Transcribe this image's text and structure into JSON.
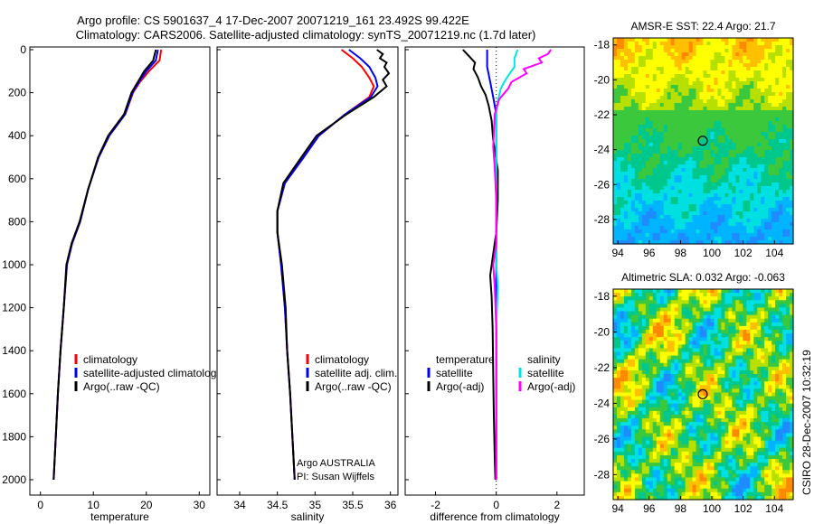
{
  "header": {
    "line1": "Argo profile: CS 5901637_4 17-Dec-2007 20071219_161 23.492S 99.422E",
    "line2": "Climatology: CARS2006. Satellite-adjusted climatology: synTS_20071219.nc (1.7d later)"
  },
  "credit": {
    "line1": "Argo AUSTRALIA",
    "line2": "PI: Susan Wijffels",
    "timestamp": "CSIRO 28-Dec-2007 10:32:19"
  },
  "colors": {
    "climatology": "#ff0000",
    "satellite": "#0000ff",
    "argo": "#000000",
    "sat_diff": "#00e5e5",
    "argo_sal_diff": "#ff00ff"
  },
  "chart_data": [
    {
      "type": "line",
      "panel": "temperature",
      "xlabel": "temperature",
      "ylabel": "",
      "xlim": [
        -2,
        32
      ],
      "ylim": [
        0,
        2050
      ],
      "y_reversed": true,
      "xticks": [
        0,
        10,
        20,
        30
      ],
      "yticks": [
        0,
        200,
        400,
        600,
        800,
        1000,
        1200,
        1400,
        1600,
        1800,
        2000
      ],
      "legend": [
        "climatology",
        "satellite-adjusted climatology",
        "Argo(..raw -QC)"
      ],
      "legend_position": "lower-middle",
      "series": [
        {
          "name": "climatology",
          "color": "#ff0000",
          "points": [
            [
              22.8,
              0
            ],
            [
              22.5,
              50
            ],
            [
              20.5,
              100
            ],
            [
              18.8,
              150
            ],
            [
              17.5,
              200
            ],
            [
              16,
              300
            ],
            [
              13,
              400
            ],
            [
              11,
              500
            ],
            [
              9,
              650
            ],
            [
              7.5,
              800
            ],
            [
              6,
              900
            ],
            [
              5,
              1000
            ],
            [
              4.4,
              1200
            ],
            [
              3.8,
              1400
            ],
            [
              3.3,
              1600
            ],
            [
              2.9,
              1800
            ],
            [
              2.5,
              2000
            ]
          ]
        },
        {
          "name": "satellite-adjusted climatology",
          "color": "#0000ff",
          "points": [
            [
              22.2,
              0
            ],
            [
              21.8,
              50
            ],
            [
              20.0,
              100
            ],
            [
              18.6,
              150
            ],
            [
              17.4,
              200
            ],
            [
              16,
              300
            ],
            [
              13,
              400
            ],
            [
              11,
              500
            ],
            [
              9,
              650
            ],
            [
              7.5,
              800
            ],
            [
              6,
              900
            ],
            [
              5,
              1000
            ],
            [
              4.4,
              1200
            ],
            [
              3.8,
              1400
            ],
            [
              3.3,
              1600
            ],
            [
              2.9,
              1800
            ],
            [
              2.5,
              2000
            ]
          ]
        },
        {
          "name": "Argo(..raw -QC)",
          "color": "#000000",
          "points": [
            [
              21.8,
              0
            ],
            [
              21.3,
              50
            ],
            [
              19.6,
              100
            ],
            [
              18.4,
              150
            ],
            [
              17.2,
              200
            ],
            [
              15.8,
              300
            ],
            [
              12.8,
              400
            ],
            [
              10.9,
              500
            ],
            [
              9,
              650
            ],
            [
              7.4,
              800
            ],
            [
              5.9,
              900
            ],
            [
              4.9,
              1000
            ],
            [
              4.4,
              1200
            ],
            [
              3.8,
              1400
            ],
            [
              3.3,
              1600
            ],
            [
              2.9,
              1800
            ],
            [
              2.5,
              2000
            ]
          ]
        }
      ]
    },
    {
      "type": "line",
      "panel": "salinity",
      "xlabel": "salinity",
      "ylabel": "",
      "xlim": [
        33.7,
        36.1
      ],
      "ylim": [
        0,
        2050
      ],
      "y_reversed": true,
      "xticks": [
        34,
        34.5,
        35,
        35.5,
        36
      ],
      "legend": [
        "climatology",
        "satellite adj. clim.",
        "Argo(..raw -QC)"
      ],
      "legend_position": "lower-right",
      "series": [
        {
          "name": "climatology",
          "color": "#ff0000",
          "points": [
            [
              35.35,
              0
            ],
            [
              35.5,
              40
            ],
            [
              35.62,
              80
            ],
            [
              35.72,
              130
            ],
            [
              35.78,
              170
            ],
            [
              35.72,
              220
            ],
            [
              35.4,
              300
            ],
            [
              35.05,
              400
            ],
            [
              34.85,
              500
            ],
            [
              34.6,
              620
            ],
            [
              34.5,
              750
            ],
            [
              34.5,
              850
            ],
            [
              34.55,
              1000
            ],
            [
              34.6,
              1200
            ],
            [
              34.63,
              1400
            ],
            [
              34.67,
              1600
            ],
            [
              34.7,
              1800
            ],
            [
              34.73,
              2000
            ]
          ]
        },
        {
          "name": "satellite adj. clim.",
          "color": "#0000ff",
          "points": [
            [
              35.45,
              0
            ],
            [
              35.6,
              40
            ],
            [
              35.72,
              80
            ],
            [
              35.8,
              130
            ],
            [
              35.83,
              170
            ],
            [
              35.74,
              220
            ],
            [
              35.4,
              300
            ],
            [
              35.05,
              400
            ],
            [
              34.85,
              500
            ],
            [
              34.6,
              620
            ],
            [
              34.5,
              750
            ],
            [
              34.5,
              850
            ],
            [
              34.55,
              1000
            ],
            [
              34.6,
              1200
            ],
            [
              34.63,
              1400
            ],
            [
              34.67,
              1600
            ],
            [
              34.7,
              1800
            ],
            [
              34.73,
              2000
            ]
          ]
        },
        {
          "name": "Argo(..raw -QC)",
          "color": "#000000",
          "points": [
            [
              35.82,
              0
            ],
            [
              35.9,
              20
            ],
            [
              35.86,
              40
            ],
            [
              35.95,
              60
            ],
            [
              35.92,
              80
            ],
            [
              35.98,
              110
            ],
            [
              35.9,
              140
            ],
            [
              35.95,
              170
            ],
            [
              35.78,
              220
            ],
            [
              35.42,
              300
            ],
            [
              35.02,
              400
            ],
            [
              34.82,
              500
            ],
            [
              34.58,
              620
            ],
            [
              34.5,
              750
            ],
            [
              34.5,
              850
            ],
            [
              34.56,
              1000
            ],
            [
              34.61,
              1200
            ],
            [
              34.63,
              1400
            ],
            [
              34.67,
              1600
            ],
            [
              34.7,
              1800
            ],
            [
              34.73,
              2000
            ]
          ]
        }
      ]
    },
    {
      "type": "line",
      "panel": "difference",
      "xlabel": "difference from climatology",
      "ylabel": "",
      "xlim": [
        -3.0,
        2.9
      ],
      "ylim": [
        0,
        2050
      ],
      "y_reversed": true,
      "xticks": [
        -2,
        0,
        2
      ],
      "zero_line": "dotted",
      "legend_groups": [
        {
          "title": "temperature",
          "entries": [
            "satellite",
            "Argo(-adj)"
          ]
        },
        {
          "title": "salinity",
          "entries": [
            "satellite",
            "Argo(-adj)"
          ]
        }
      ],
      "legend_position": "lower-middle",
      "series": [
        {
          "name": "temperature satellite",
          "color": "#0000ff",
          "points": [
            [
              -0.3,
              0
            ],
            [
              -0.3,
              80
            ],
            [
              -0.2,
              150
            ],
            [
              -0.1,
              220
            ],
            [
              0,
              300
            ],
            [
              0,
              2000
            ]
          ]
        },
        {
          "name": "temperature Argo(-adj)",
          "color": "#000000",
          "points": [
            [
              -1.1,
              0
            ],
            [
              -0.9,
              30
            ],
            [
              -0.7,
              60
            ],
            [
              -0.75,
              90
            ],
            [
              -0.6,
              130
            ],
            [
              -0.5,
              170
            ],
            [
              -0.35,
              210
            ],
            [
              -0.25,
              260
            ],
            [
              -0.15,
              330
            ],
            [
              -0.1,
              420
            ],
            [
              0.05,
              560
            ],
            [
              0.05,
              700
            ],
            [
              0.0,
              850
            ],
            [
              -0.1,
              950
            ],
            [
              -0.2,
              1050
            ],
            [
              -0.15,
              1150
            ],
            [
              -0.12,
              1300
            ],
            [
              -0.1,
              1500
            ],
            [
              -0.08,
              1700
            ],
            [
              -0.05,
              1900
            ],
            [
              -0.03,
              2000
            ]
          ]
        },
        {
          "name": "salinity satellite",
          "color": "#00e5e5",
          "points": [
            [
              0.7,
              0
            ],
            [
              0.6,
              40
            ],
            [
              0.6,
              80
            ],
            [
              0.35,
              130
            ],
            [
              0.15,
              180
            ],
            [
              0.05,
              240
            ],
            [
              0,
              300
            ],
            [
              0,
              1000
            ],
            [
              0.05,
              1100
            ],
            [
              0,
              1300
            ],
            [
              0,
              2000
            ]
          ]
        },
        {
          "name": "salinity Argo(-adj)",
          "color": "#ff00ff",
          "points": [
            [
              1.8,
              0
            ],
            [
              1.7,
              20
            ],
            [
              1.4,
              40
            ],
            [
              1.5,
              60
            ],
            [
              0.9,
              90
            ],
            [
              1.0,
              110
            ],
            [
              0.5,
              150
            ],
            [
              0.4,
              180
            ],
            [
              0.1,
              230
            ],
            [
              -0.05,
              300
            ],
            [
              -0.1,
              450
            ],
            [
              -0.05,
              550
            ],
            [
              0,
              700
            ],
            [
              0,
              900
            ],
            [
              -0.1,
              1000
            ],
            [
              -0.05,
              1100
            ],
            [
              0,
              1300
            ],
            [
              0,
              2000
            ]
          ]
        }
      ]
    },
    {
      "type": "heatmap",
      "panel": "AMSR-E SST",
      "title": "AMSR-E SST: 22.4 Argo: 21.7",
      "xlim": [
        93.7,
        105.2
      ],
      "ylim": [
        -29.4,
        -17.6
      ],
      "xticks": [
        94,
        96,
        98,
        100,
        102,
        104
      ],
      "yticks": [
        -18,
        -20,
        -22,
        -24,
        -26,
        -28
      ],
      "marker": {
        "lon": 99.42,
        "lat": -23.49
      },
      "colormap": [
        "#ff8a00",
        "#ffc000",
        "#ffff00",
        "#b7e000",
        "#3cc83c",
        "#00c88c",
        "#00e0e0",
        "#00b4ff",
        "#1e8cff"
      ]
    },
    {
      "type": "heatmap",
      "panel": "Altimetric SLA",
      "title": "Altimetric SLA: 0.032 Argo: -0.063",
      "xlim": [
        93.7,
        105.2
      ],
      "ylim": [
        -29.4,
        -17.6
      ],
      "xticks": [
        94,
        96,
        98,
        100,
        102,
        104
      ],
      "yticks": [
        -18,
        -20,
        -22,
        -24,
        -26,
        -28
      ],
      "marker": {
        "lon": 99.42,
        "lat": -23.49
      },
      "colormap": [
        "#ff8a00",
        "#ffc000",
        "#ffff00",
        "#b7e000",
        "#3cc83c",
        "#00c88c",
        "#00e0e0",
        "#00b4ff",
        "#1e8cff"
      ]
    }
  ]
}
